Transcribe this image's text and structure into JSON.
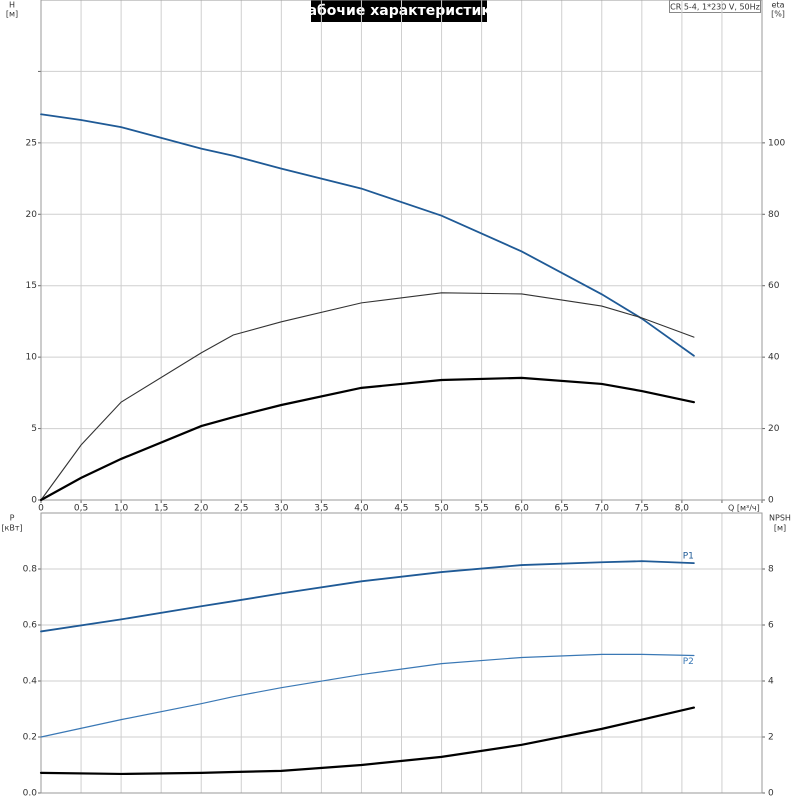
{
  "chart_data": [
    {
      "type": "line",
      "title": "Рабочие характеристики",
      "subtitle": "CR 5-4, 1*230 V, 50Hz",
      "y_label": "H",
      "y_unit": "[м]",
      "y2_label": "eta",
      "y2_unit": "[%]",
      "x_label": "Q [м³/ч]",
      "x": [
        0,
        0.5,
        1,
        2,
        2.4,
        3,
        4,
        5,
        6,
        7,
        7.5,
        8.15
      ],
      "series": [
        {
          "color": "#1f5a96",
          "width": 1.8,
          "values": [
            27.0,
            26.6,
            26.1,
            24.6,
            24.1,
            23.2,
            21.8,
            19.9,
            17.4,
            14.4,
            12.7,
            10.1
          ]
        },
        {
          "color": "#333333",
          "width": 1.1,
          "axis": "y2",
          "values": [
            0,
            15.4,
            27.4,
            41.2,
            46.2,
            49.9,
            55.2,
            58.0,
            57.7,
            54.3,
            51.0,
            45.6
          ]
        },
        {
          "color": "#000000",
          "width": 2.2,
          "axis": "y2",
          "values": [
            0,
            6.2,
            11.5,
            20.7,
            23.2,
            26.6,
            31.4,
            33.6,
            34.2,
            32.5,
            30.5,
            27.4
          ]
        }
      ],
      "xlim": [
        0,
        9
      ],
      "xticks": [
        0,
        {
          "value": 0.5,
          "label": "0,5"
        },
        {
          "value": 1,
          "label": "1,0"
        },
        {
          "value": 1.5,
          "label": "1,5"
        },
        {
          "value": 2,
          "label": "2,0"
        },
        {
          "value": 2.5,
          "label": "2,5"
        },
        {
          "value": 3,
          "label": "3,0"
        },
        {
          "value": 3.5,
          "label": "3,5"
        },
        {
          "value": 4,
          "label": "4,0"
        },
        {
          "value": 4.5,
          "label": "4,5"
        },
        {
          "value": 5,
          "label": "5,0"
        },
        {
          "value": 5.5,
          "label": "5,5"
        },
        {
          "value": 6,
          "label": "6,0"
        },
        {
          "value": 6.5,
          "label": "6,5"
        },
        {
          "value": 7,
          "label": "7,0"
        },
        {
          "value": 7.5,
          "label": "7,5"
        },
        {
          "value": 8,
          "label": "8,0"
        },
        {
          "value": 8.5,
          "label": null
        },
        {
          "value": 9,
          "label": null
        }
      ],
      "ylim": [
        0,
        35
      ],
      "yticks": [
        0,
        5,
        10,
        15,
        20,
        25,
        {
          "value": 30,
          "label": null
        }
      ],
      "y2lim": [
        0,
        140
      ],
      "y2ticks": [
        0,
        20,
        40,
        60,
        80,
        100
      ],
      "grid": true
    },
    {
      "type": "line",
      "y_label": "P",
      "y_unit": "[кВт]",
      "y2_label": "NPSH",
      "y2_unit": "[м]",
      "x": [
        0,
        1,
        2,
        2.4,
        3,
        4,
        5,
        6,
        7,
        7.5,
        8.15
      ],
      "series": [
        {
          "name": "P1",
          "color": "#1f5a96",
          "width": 1.8,
          "values": [
            0.577,
            0.62,
            0.667,
            0.685,
            0.713,
            0.756,
            0.789,
            0.814,
            0.824,
            0.828,
            0.821
          ]
        },
        {
          "name": "P2",
          "color": "#3a78b5",
          "width": 1.2,
          "values": [
            0.2,
            0.262,
            0.319,
            0.344,
            0.376,
            0.423,
            0.462,
            0.484,
            0.495,
            0.495,
            0.491
          ]
        },
        {
          "color": "#000000",
          "width": 2.2,
          "axis": "y2",
          "values": [
            0.72,
            0.68,
            0.72,
            0.75,
            0.79,
            1.0,
            1.29,
            1.72,
            2.29,
            2.62,
            3.05
          ]
        }
      ],
      "xlim": [
        0,
        9
      ],
      "ylim": [
        0,
        1
      ],
      "yticks": [
        {
          "value": 0,
          "label": "0.0"
        },
        0.2,
        0.4,
        0.6,
        0.8
      ],
      "y2lim": [
        0,
        10
      ],
      "y2ticks": [
        0,
        2,
        4,
        6,
        8
      ],
      "grid": true
    }
  ]
}
